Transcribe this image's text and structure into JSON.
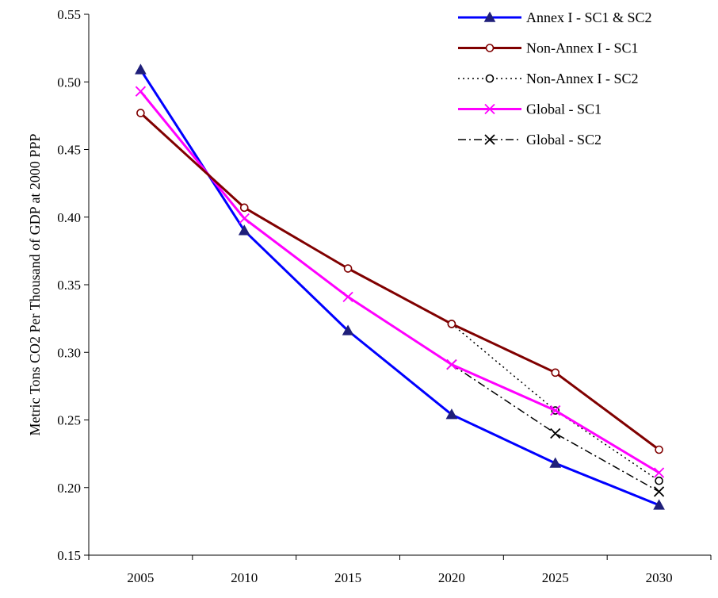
{
  "chart_data": {
    "type": "line",
    "title": "",
    "xlabel": "",
    "ylabel": "Metric Tons CO2 Per Thousand of GDP at 2000 PPP",
    "categories": [
      "2005",
      "2010",
      "2015",
      "2020",
      "2025",
      "2030"
    ],
    "ylim": [
      0.15,
      0.55
    ],
    "yticks": [
      0.15,
      0.2,
      0.25,
      0.3,
      0.35,
      0.4,
      0.45,
      0.5,
      0.55
    ],
    "ytick_labels": [
      "0.15",
      "0.20",
      "0.25",
      "0.30",
      "0.35",
      "0.40",
      "0.45",
      "0.50",
      "0.55"
    ],
    "grid": false,
    "legend_position": "top-right",
    "series": [
      {
        "name": "Annex I - SC1 & SC2",
        "values": [
          0.509,
          0.39,
          0.316,
          0.254,
          0.218,
          0.187
        ],
        "color": "#0000ff",
        "dash": "solid",
        "marker": "filled-triangle",
        "marker_color": "#1f1f7a"
      },
      {
        "name": "Non-Annex I - SC1",
        "values": [
          0.477,
          0.407,
          0.362,
          0.321,
          0.285,
          0.228
        ],
        "color": "#800000",
        "dash": "solid",
        "marker": "open-circle",
        "marker_color": "#800000"
      },
      {
        "name": "Non-Annex I - SC2",
        "values": [
          null,
          null,
          null,
          0.321,
          0.257,
          0.205
        ],
        "color": "#000000",
        "dash": "dotted",
        "marker": "open-circle",
        "marker_color": "#000000"
      },
      {
        "name": "Global - SC1",
        "values": [
          0.493,
          0.399,
          0.341,
          0.291,
          0.257,
          0.211
        ],
        "color": "#ff00ff",
        "dash": "solid",
        "marker": "x",
        "marker_color": "#ff00ff"
      },
      {
        "name": "Global - SC2",
        "values": [
          null,
          null,
          null,
          0.291,
          0.24,
          0.197
        ],
        "color": "#000000",
        "dash": "dash-dot",
        "marker": "x",
        "marker_color": "#000000"
      }
    ]
  }
}
